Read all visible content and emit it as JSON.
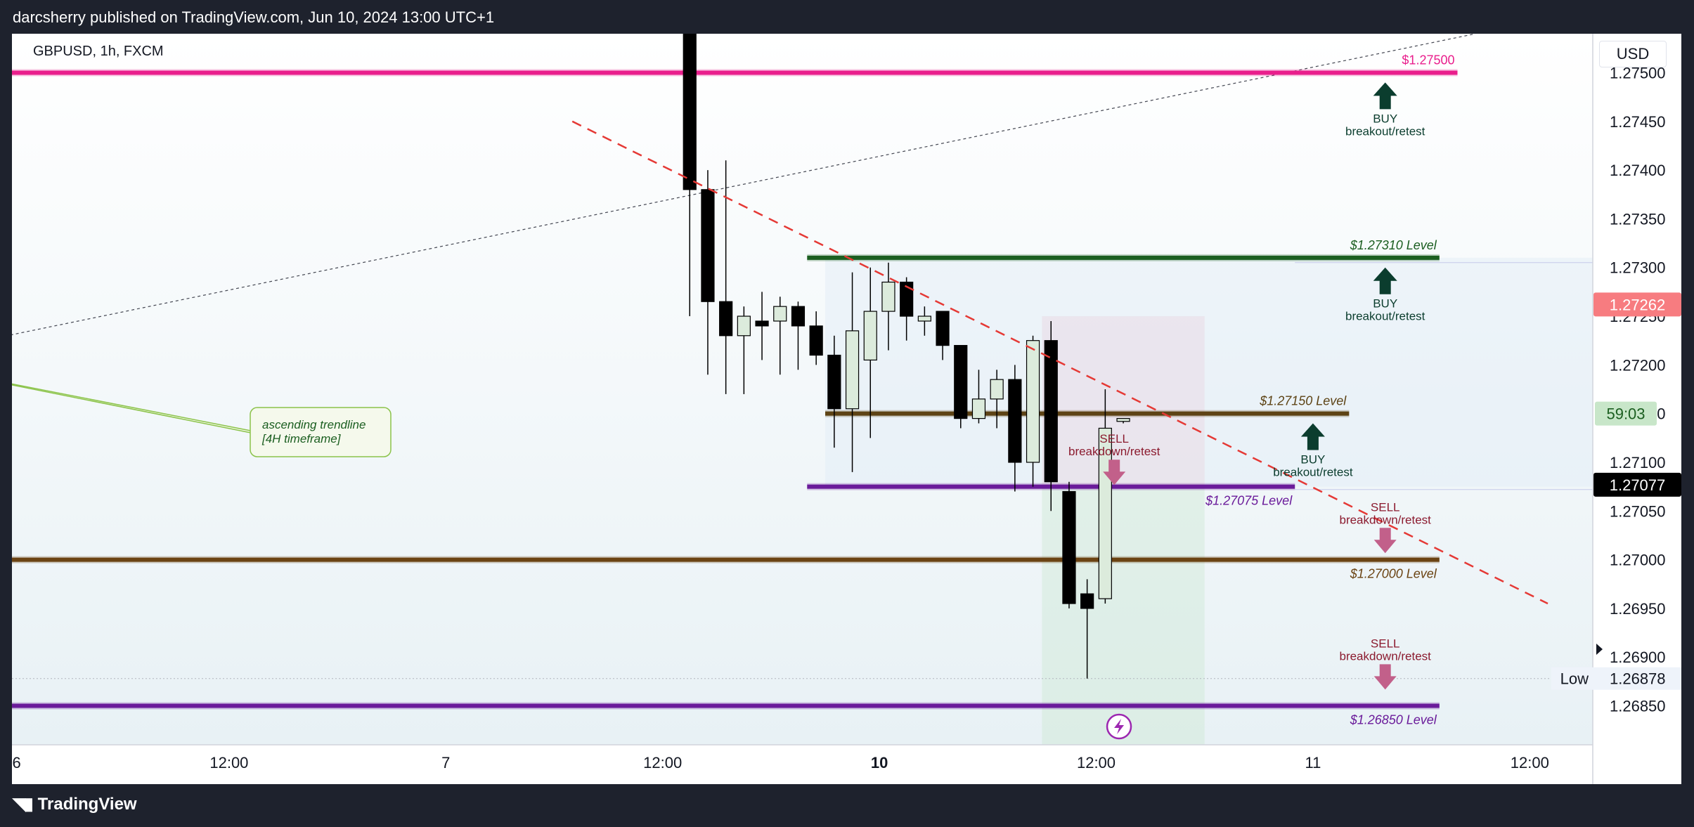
{
  "header": {
    "publisher_text": "darcsherry published on TradingView.com, Jun 10, 2024 13:00 UTC+1"
  },
  "footer": {
    "brand": "TradingView"
  },
  "chart_data": {
    "type": "candlestick",
    "symbol": "GBPUSD, 1h, FXCM",
    "currency": "USD",
    "x_ticks": [
      {
        "label": "6",
        "x": 0,
        "bold": false
      },
      {
        "label": "12:00",
        "x": 12,
        "bold": false
      },
      {
        "label": "7",
        "x": 24,
        "bold": false
      },
      {
        "label": "12:00",
        "x": 36,
        "bold": false
      },
      {
        "label": "10",
        "x": 48,
        "bold": true
      },
      {
        "label": "12:00",
        "x": 60,
        "bold": false
      },
      {
        "label": "11",
        "x": 72,
        "bold": false
      },
      {
        "label": "12:00",
        "x": 84,
        "bold": false
      }
    ],
    "y_ticks": [
      "1.27500",
      "1.27450",
      "1.27400",
      "1.27350",
      "1.27300",
      "1.27250",
      "1.27200",
      "1.27150",
      "1.27100",
      "1.27050",
      "1.27000",
      "1.26950",
      "1.26900",
      "1.26850"
    ],
    "ylim": [
      1.2681,
      1.2754
    ],
    "candles": [
      {
        "x": 37,
        "o": 1.276,
        "h": 1.276,
        "l": 1.2725,
        "c": 1.2738
      },
      {
        "x": 38,
        "o": 1.2738,
        "h": 1.274,
        "l": 1.2719,
        "c": 1.27265
      },
      {
        "x": 39,
        "o": 1.27265,
        "h": 1.2741,
        "l": 1.2717,
        "c": 1.2723
      },
      {
        "x": 40,
        "o": 1.2723,
        "h": 1.2726,
        "l": 1.2717,
        "c": 1.2725
      },
      {
        "x": 41,
        "o": 1.27245,
        "h": 1.27275,
        "l": 1.27205,
        "c": 1.2724
      },
      {
        "x": 42,
        "o": 1.27245,
        "h": 1.2727,
        "l": 1.2719,
        "c": 1.2726
      },
      {
        "x": 43,
        "o": 1.2726,
        "h": 1.27265,
        "l": 1.27195,
        "c": 1.2724
      },
      {
        "x": 44,
        "o": 1.2724,
        "h": 1.27255,
        "l": 1.272,
        "c": 1.2721
      },
      {
        "x": 45,
        "o": 1.2721,
        "h": 1.2723,
        "l": 1.27115,
        "c": 1.27155
      },
      {
        "x": 46,
        "o": 1.27155,
        "h": 1.27295,
        "l": 1.2709,
        "c": 1.27235
      },
      {
        "x": 47,
        "o": 1.27205,
        "h": 1.273,
        "l": 1.27125,
        "c": 1.27255
      },
      {
        "x": 48,
        "o": 1.27255,
        "h": 1.27305,
        "l": 1.27215,
        "c": 1.27285
      },
      {
        "x": 49,
        "o": 1.27285,
        "h": 1.2729,
        "l": 1.27225,
        "c": 1.2725
      },
      {
        "x": 50,
        "o": 1.27245,
        "h": 1.2726,
        "l": 1.2723,
        "c": 1.2725
      },
      {
        "x": 51,
        "o": 1.27255,
        "h": 1.27255,
        "l": 1.27205,
        "c": 1.2722
      },
      {
        "x": 52,
        "o": 1.2722,
        "h": 1.2722,
        "l": 1.27135,
        "c": 1.27145
      },
      {
        "x": 53,
        "o": 1.27145,
        "h": 1.27195,
        "l": 1.2714,
        "c": 1.27165
      },
      {
        "x": 54,
        "o": 1.27165,
        "h": 1.27195,
        "l": 1.27135,
        "c": 1.27185
      },
      {
        "x": 55,
        "o": 1.27185,
        "h": 1.272,
        "l": 1.2707,
        "c": 1.271
      },
      {
        "x": 56,
        "o": 1.271,
        "h": 1.2723,
        "l": 1.27075,
        "c": 1.27225
      },
      {
        "x": 57,
        "o": 1.27225,
        "h": 1.27245,
        "l": 1.2705,
        "c": 1.2708
      },
      {
        "x": 58,
        "o": 1.2707,
        "h": 1.2708,
        "l": 1.2695,
        "c": 1.26955
      },
      {
        "x": 59,
        "o": 1.26965,
        "h": 1.2698,
        "l": 1.26878,
        "c": 1.2695
      },
      {
        "x": 60,
        "o": 1.2696,
        "h": 1.27175,
        "l": 1.26955,
        "c": 1.27135
      },
      {
        "x": 61,
        "o": 1.27142,
        "h": 1.27145,
        "l": 1.2714,
        "c": 1.27145
      }
    ],
    "levels": [
      {
        "price": 1.275,
        "label": "$1.27500",
        "color": "#e91e8c",
        "x0": -37,
        "x1": 80
      },
      {
        "price": 1.2731,
        "label": "$1.27310 Level",
        "color": "#1b5e20",
        "x0": 44,
        "x1": 79
      },
      {
        "price": 1.2715,
        "label": "$1.27150 Level",
        "color": "#5d4315",
        "x0": 45,
        "x1": 74
      },
      {
        "price": 1.27075,
        "label": "$1.27075 Level",
        "color": "#6a1b9a",
        "x0": 44,
        "x1": 71
      },
      {
        "price": 1.27,
        "label": "$1.27000 Level",
        "color": "#6b4313",
        "x0": -37,
        "x1": 79
      },
      {
        "price": 1.2685,
        "label": "$1.26850 Level",
        "color": "#6a1b9a",
        "x0": -37,
        "x1": 79
      }
    ],
    "trade_box": {
      "x0": 57,
      "x1": 66,
      "entry": 1.27075,
      "stop": 1.2725,
      "target": 1.268
    },
    "trendlines": {
      "ascending": {
        "from": [
          -37,
          1.2709
        ],
        "to": [
          81,
          1.2754
        ]
      },
      "descending": {
        "from": [
          31,
          1.2745
        ],
        "to": [
          85,
          1.26955
        ]
      }
    },
    "signals": [
      {
        "type": "buy",
        "title": "BUY",
        "subtitle": "breakout/retest",
        "x": 76,
        "price": 1.2749
      },
      {
        "type": "buy",
        "title": "BUY",
        "subtitle": "breakout/retest",
        "x": 76,
        "price": 1.273
      },
      {
        "type": "buy",
        "title": "BUY",
        "subtitle": "breakout/retest",
        "x": 72,
        "price": 1.2714
      },
      {
        "type": "sell",
        "title": "SELL",
        "subtitle": "breakdown/retest",
        "x": 61,
        "price": 1.2712
      },
      {
        "type": "sell",
        "title": "SELL",
        "subtitle": "breakdown/retest",
        "x": 76,
        "price": 1.2705
      },
      {
        "type": "sell",
        "title": "SELL",
        "subtitle": "breakdown/retest",
        "x": 76,
        "price": 1.2691
      }
    ],
    "callout": {
      "lines": [
        "ascending trendline",
        "[4H timeframe]"
      ],
      "anchor": [
        -15,
        1.27235
      ]
    },
    "low_marker": {
      "label": "Low",
      "price": 1.26878,
      "value": "1.26878"
    },
    "price_tags": [
      {
        "value": "1.27262",
        "price": 1.27262,
        "bg": "#f77c80",
        "fg": "#ffffff"
      },
      {
        "value": "59:03",
        "price": 1.2715,
        "bg": "#c8e6c9",
        "fg": "#1b5e20"
      },
      {
        "value": "1.27077",
        "price": 1.27077,
        "bg": "#000000",
        "fg": "#ffffff"
      }
    ],
    "grid": false,
    "legend": "none"
  }
}
